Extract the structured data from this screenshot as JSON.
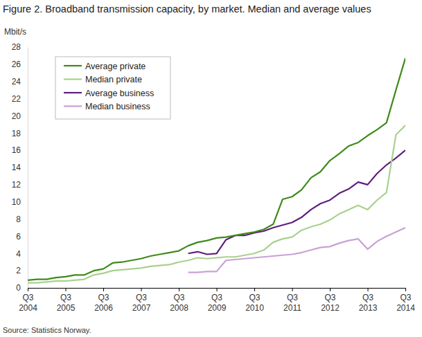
{
  "chart_data": {
    "type": "line",
    "title": "Figure 2. Broadband transmission capacity, by market. Median and average values",
    "y_label": "Mbit/s",
    "source": "Source: Statistics Norway.",
    "categories": [
      "Q3\n2004",
      null,
      null,
      null,
      "Q3\n2005",
      null,
      null,
      null,
      "Q3\n2006",
      null,
      null,
      null,
      "Q3\n2007",
      null,
      null,
      null,
      "Q3\n2008",
      null,
      null,
      null,
      "Q3\n2009",
      null,
      null,
      null,
      "Q3\n2010",
      null,
      null,
      null,
      "Q3\n2011",
      null,
      null,
      null,
      "Q3\n2012",
      null,
      null,
      null,
      "Q3\n2013",
      null,
      null,
      null,
      "Q3\n2014"
    ],
    "series": [
      {
        "name": "Average private",
        "color": "#3f8a1a",
        "values": [
          0.9,
          1.0,
          1.0,
          1.2,
          1.3,
          1.5,
          1.5,
          2.0,
          2.2,
          2.9,
          3.0,
          3.2,
          3.4,
          3.7,
          3.9,
          4.1,
          4.3,
          4.9,
          5.3,
          5.5,
          5.8,
          5.9,
          6.1,
          6.3,
          6.5,
          6.8,
          7.4,
          10.3,
          10.6,
          11.4,
          12.8,
          13.5,
          14.8,
          15.6,
          16.5,
          16.9,
          17.7,
          18.4,
          19.2,
          23.0,
          26.7
        ]
      },
      {
        "name": "Median private",
        "color": "#a9d18e",
        "values": [
          0.6,
          0.6,
          0.7,
          0.8,
          0.8,
          0.9,
          1.0,
          1.5,
          1.7,
          2.0,
          2.1,
          2.2,
          2.3,
          2.5,
          2.6,
          2.7,
          3.0,
          3.2,
          3.5,
          3.4,
          3.5,
          3.6,
          3.6,
          3.8,
          4.0,
          4.4,
          5.3,
          5.7,
          5.9,
          6.7,
          7.1,
          7.4,
          7.9,
          8.6,
          9.1,
          9.6,
          9.1,
          10.2,
          11.1,
          17.8,
          18.9
        ]
      },
      {
        "name": "Average business",
        "color": "#5e1f7d",
        "values": [
          null,
          null,
          null,
          null,
          null,
          null,
          null,
          null,
          null,
          null,
          null,
          null,
          null,
          null,
          null,
          null,
          null,
          4.0,
          4.2,
          3.9,
          4.0,
          5.6,
          6.1,
          6.1,
          6.4,
          6.6,
          7.0,
          7.3,
          7.6,
          8.2,
          9.1,
          9.8,
          10.2,
          11.0,
          11.5,
          12.3,
          12.0,
          13.3,
          14.3,
          15.1,
          16.0
        ]
      },
      {
        "name": "Median business",
        "color": "#c9a0d6",
        "values": [
          null,
          null,
          null,
          null,
          null,
          null,
          null,
          null,
          null,
          null,
          null,
          null,
          null,
          null,
          null,
          null,
          null,
          1.8,
          1.8,
          1.9,
          1.9,
          3.2,
          3.3,
          3.4,
          3.5,
          3.6,
          3.7,
          3.8,
          3.9,
          4.1,
          4.4,
          4.7,
          4.8,
          5.2,
          5.5,
          5.7,
          4.5,
          5.4,
          6.0,
          6.5,
          7.0
        ]
      }
    ],
    "ylim": [
      0,
      28
    ],
    "yticks": [
      0,
      2,
      4,
      6,
      8,
      10,
      12,
      14,
      16,
      18,
      20,
      22,
      24,
      26,
      28
    ],
    "grid": false,
    "legend": "upper left"
  }
}
